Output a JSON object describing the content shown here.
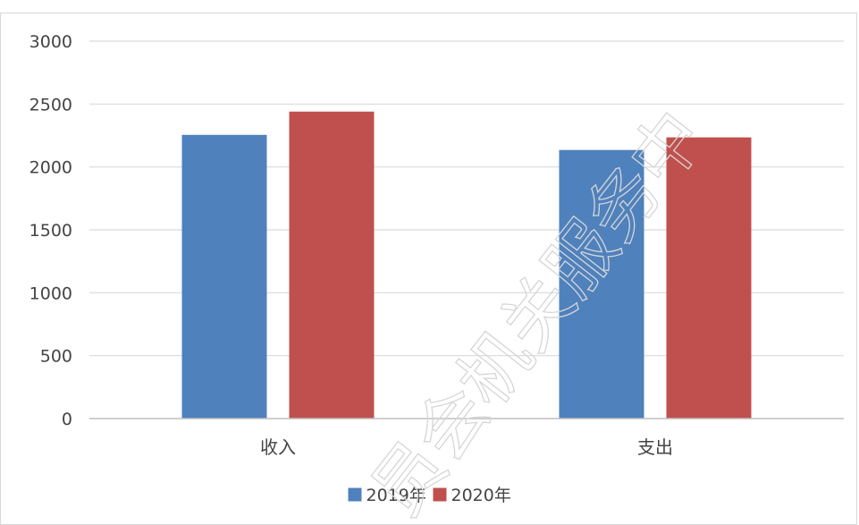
{
  "chart_data": {
    "type": "bar",
    "categories": [
      "收入",
      "支出"
    ],
    "series": [
      {
        "name": "2019年",
        "color": "#4f81bd",
        "values": [
          2255,
          2135
        ]
      },
      {
        "name": "2020年",
        "color": "#c0504d",
        "values": [
          2440,
          2235
        ]
      }
    ],
    "ylim": [
      0,
      3000
    ],
    "yticks": [
      0,
      500,
      1000,
      1500,
      2000,
      2500,
      3000
    ],
    "ytick_labels": [
      "0",
      "500",
      "1000",
      "1500",
      "2000",
      "2500",
      "3000"
    ],
    "grid": true,
    "legend_position": "bottom",
    "gridline_color": "#d9d9d9",
    "axis_color": "#bfbfbf"
  },
  "watermark": {
    "text": "员会机关服务中"
  }
}
